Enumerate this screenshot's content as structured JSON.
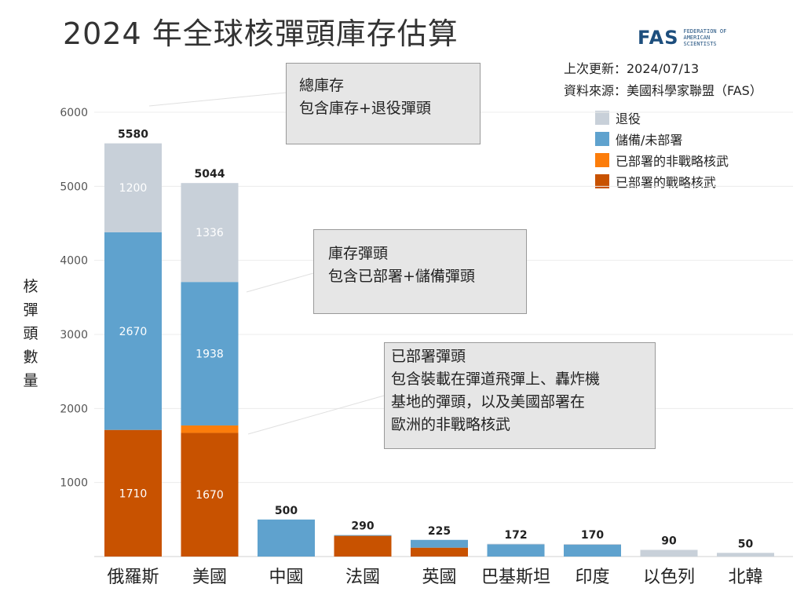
{
  "title": "2024 年全球核彈頭庫存估算",
  "logo": {
    "mark": "FAS",
    "subtitle": "FEDERATION OF AMERICAN SCIENTISTS"
  },
  "updated": "上次更新：2024/07/13",
  "source": "資料來源：美國科學家聯盟（FAS）",
  "callouts": [
    {
      "line1": "總庫存",
      "line2": "包含庫存+退役彈頭",
      "line3": "",
      "line4": ""
    },
    {
      "line1": "庫存彈頭",
      "line2": "包含已部署+儲備彈頭",
      "line3": "",
      "line4": ""
    },
    {
      "line1": "已部署彈頭",
      "line2": "包含裝載在彈道飛彈上、轟炸機",
      "line3": "基地的彈頭，以及美國部署在",
      "line4": "歐洲的非戰略核武"
    }
  ],
  "chart_data": {
    "type": "bar",
    "stacked": true,
    "title": "2024 年全球核彈頭庫存估算",
    "xlabel": "",
    "ylabel": "核彈頭數量",
    "ylim": [
      0,
      6000
    ],
    "yticks": [
      "1000",
      "2000",
      "3000",
      "4000",
      "5000",
      "6000"
    ],
    "grid": true,
    "legend_position": "top-right",
    "categories": [
      "俄羅斯",
      "美國",
      "中國",
      "法國",
      "英國",
      "巴基斯坦",
      "印度",
      "以色列",
      "北韓"
    ],
    "totals": [
      5580,
      5044,
      500,
      290,
      225,
      172,
      170,
      90,
      50
    ],
    "series": [
      {
        "name": "已部署的戰略核武",
        "color": "#c85200",
        "values": [
          1710,
          1670,
          0,
          280,
          120,
          0,
          0,
          0,
          0
        ]
      },
      {
        "name": "已部署的非戰略核武",
        "color": "#fc7d0b",
        "values": [
          0,
          100,
          0,
          0,
          0,
          0,
          0,
          0,
          0
        ]
      },
      {
        "name": "儲備/未部署",
        "color": "#5fa2ce",
        "values": [
          2670,
          1938,
          500,
          10,
          105,
          170,
          160,
          0,
          0
        ]
      },
      {
        "name": "退役",
        "color": "#c8d0d9",
        "values": [
          1200,
          1336,
          0,
          0,
          0,
          2,
          10,
          90,
          50
        ]
      }
    ],
    "segment_labels": [
      [
        "1710",
        "1670",
        "",
        "",
        "",
        "",
        "",
        "",
        ""
      ],
      [
        "",
        "",
        "",
        "",
        "",
        "",
        "",
        "",
        ""
      ],
      [
        "2670",
        "1938",
        "",
        "",
        "",
        "",
        "",
        "",
        ""
      ],
      [
        "1200",
        "1336",
        "",
        "",
        "",
        "",
        "",
        "",
        ""
      ]
    ],
    "legend_order": [
      "退役",
      "儲備/未部署",
      "已部署的非戰略核武",
      "已部署的戰略核武"
    ]
  }
}
